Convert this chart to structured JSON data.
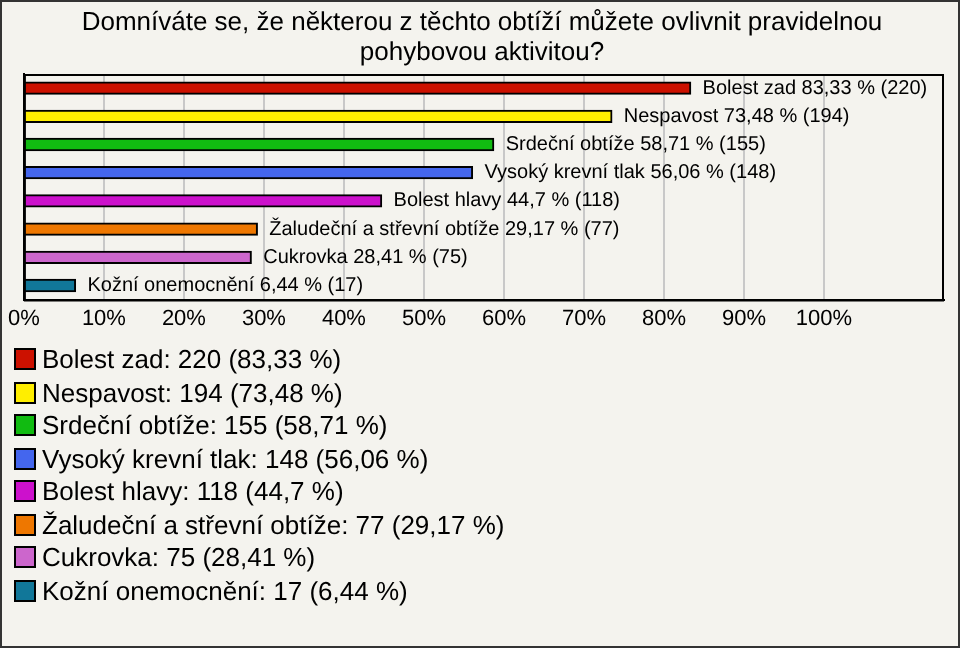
{
  "chart_data": {
    "type": "bar",
    "orientation": "horizontal",
    "title": "Domníváte se, že některou z těchto obtíží můžete ovlivnit pravidelnou pohybovou aktivitou?",
    "categories": [
      "Bolest zad",
      "Nespavost",
      "Srdeční obtíže",
      "Vysoký krevní tlak",
      "Bolest hlavy",
      "Žaludeční a střevní obtíže",
      "Cukrovka",
      "Kožní onemocnění"
    ],
    "values": [
      83.33,
      73.48,
      58.71,
      56.06,
      44.7,
      29.17,
      28.41,
      6.44
    ],
    "colors": [
      "#cc1100",
      "#ffee00",
      "#11bb11",
      "#4466ee",
      "#cc11cc",
      "#ee7700",
      "#cc66cc",
      "#117799"
    ],
    "value_labels": [
      "83,33 % (220)",
      "73,48 % (194)",
      "58,71 % (155)",
      "56,06 % (148)",
      "44,7 % (118)",
      "29,17 % (77)",
      "28,41 % (75)",
      "6,44 % (17)"
    ],
    "xlim": [
      0,
      115
    ],
    "xticks": [
      {
        "value": 0,
        "label": "0%"
      },
      {
        "value": 10,
        "label": "10%"
      },
      {
        "value": 20,
        "label": "20%"
      },
      {
        "value": 30,
        "label": "30%"
      },
      {
        "value": 40,
        "label": "40%"
      },
      {
        "value": 50,
        "label": "50%"
      },
      {
        "value": 60,
        "label": "60%"
      },
      {
        "value": 70,
        "label": "70%"
      },
      {
        "value": 80,
        "label": "80%"
      },
      {
        "value": 90,
        "label": "90%"
      },
      {
        "value": 100,
        "label": "100%"
      }
    ],
    "grid": "x",
    "tick_labels": "x",
    "annotations": [
      "Bolest zad: 220 (83,33 %)",
      "Nespavost: 194 (73,48 %)",
      "Srdeční obtíže: 155 (58,71 %)",
      "Vysoký krevní tlak: 148 (56,06 %)",
      "Bolest hlavy: 118 (44,7 %)",
      "Žaludeční a střevní obtíže: 77 (29,17 %)",
      "Cukrovka: 75 (28,41 %)",
      "Kožní onemocnění: 17 (6,44 %)"
    ]
  }
}
